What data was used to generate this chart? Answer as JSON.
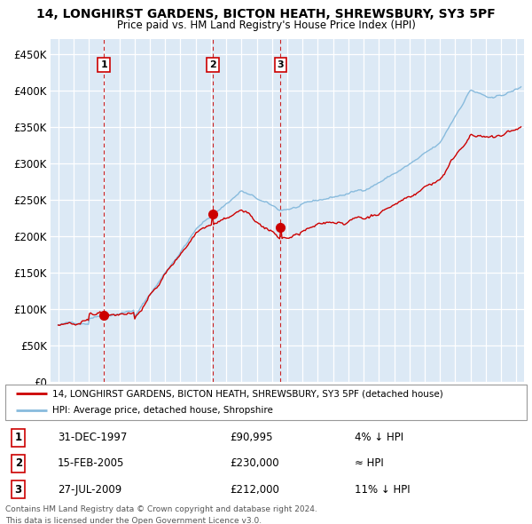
{
  "title_line1": "14, LONGHIRST GARDENS, BICTON HEATH, SHREWSBURY, SY3 5PF",
  "title_line2": "Price paid vs. HM Land Registry's House Price Index (HPI)",
  "background_color": "#dce9f5",
  "plot_bg_color": "#dce9f5",
  "grid_color": "#ffffff",
  "legend_label_red": "14, LONGHIRST GARDENS, BICTON HEATH, SHREWSBURY, SY3 5PF (detached house)",
  "legend_label_blue": "HPI: Average price, detached house, Shropshire",
  "sale_points": [
    {
      "date_label": "31-DEC-1997",
      "value": 90995,
      "x_year": 1997.99,
      "label": "1",
      "desc": "4% ↓ HPI"
    },
    {
      "date_label": "15-FEB-2005",
      "value": 230000,
      "x_year": 2005.12,
      "label": "2",
      "desc": "≈ HPI"
    },
    {
      "date_label": "27-JUL-2009",
      "value": 212000,
      "x_year": 2009.55,
      "label": "3",
      "desc": "11% ↓ HPI"
    }
  ],
  "vline_color": "#cc2222",
  "dot_color": "#cc0000",
  "red_line_color": "#cc0000",
  "blue_line_color": "#88bbdd",
  "yticks": [
    0,
    50000,
    100000,
    150000,
    200000,
    250000,
    300000,
    350000,
    400000,
    450000
  ],
  "ylim": [
    0,
    470000
  ],
  "xlim_start": 1994.5,
  "xlim_end": 2025.5,
  "footer_line1": "Contains HM Land Registry data © Crown copyright and database right 2024.",
  "footer_line2": "This data is licensed under the Open Government Licence v3.0."
}
